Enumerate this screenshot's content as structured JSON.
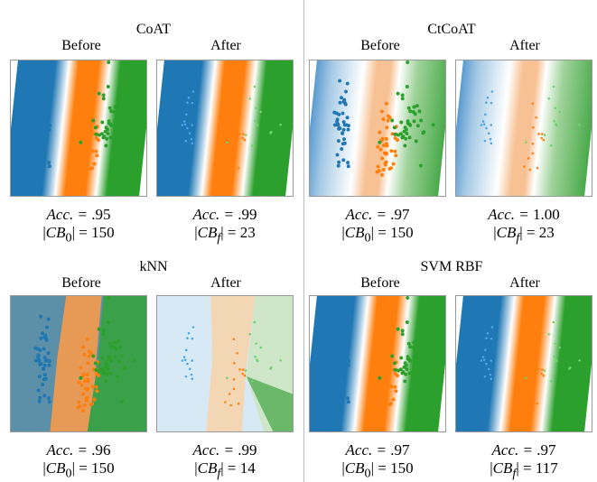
{
  "panels": [
    {
      "title": "CoAT",
      "before_label": "Before",
      "after_label": "After",
      "before": {
        "acc": ".95",
        "cb": "150",
        "cb_sym": "0"
      },
      "after": {
        "acc": ".99",
        "cb": "23",
        "cb_sym": "f"
      }
    },
    {
      "title": "CtCoAT",
      "before_label": "Before",
      "after_label": "After",
      "before": {
        "acc": ".97",
        "cb": "150",
        "cb_sym": "0"
      },
      "after": {
        "acc": "1.00",
        "cb": "23",
        "cb_sym": "f"
      }
    },
    {
      "title": "kNN",
      "before_label": "Before",
      "after_label": "After",
      "before": {
        "acc": ".96",
        "cb": "150",
        "cb_sym": "0"
      },
      "after": {
        "acc": ".99",
        "cb": "14",
        "cb_sym": "f"
      }
    },
    {
      "title": "SVM RBF",
      "before_label": "Before",
      "after_label": "After",
      "before": {
        "acc": ".97",
        "cb": "150",
        "cb_sym": "0"
      },
      "after": {
        "acc": ".97",
        "cb": "117",
        "cb_sym": "f"
      }
    }
  ],
  "acc_prefix": "Acc. = ",
  "cb_prefix": "CB",
  "colors": {
    "blue": "#1f77b4",
    "orange": "#ff7f0e",
    "green": "#2ca02c"
  }
}
